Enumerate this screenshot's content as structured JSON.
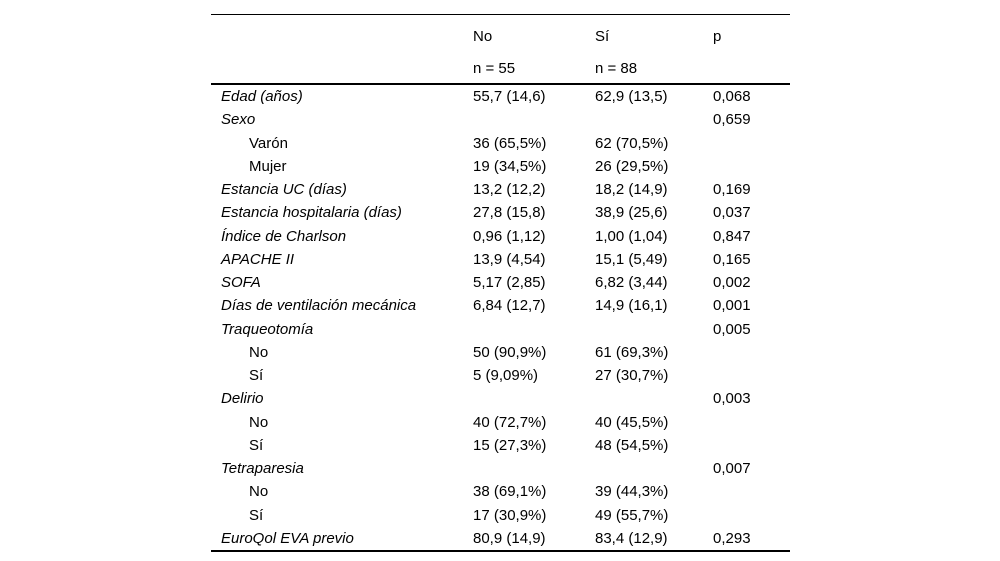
{
  "page": {
    "background_color": "#ffffff",
    "text_color": "#000000"
  },
  "table": {
    "header": {
      "group_no_label": "No",
      "group_no_n": "n = 55",
      "group_si_label": "Sí",
      "group_si_n": "n = 88",
      "p_label": "p"
    },
    "rows": [
      {
        "type": "var",
        "label": "Edad (años)",
        "no": "55,7 (14,6)",
        "si": "62,9 (13,5)",
        "p": "0,068"
      },
      {
        "type": "var",
        "label": "Sexo",
        "no": "",
        "si": "",
        "p": "0,659"
      },
      {
        "type": "sub",
        "label": "Varón",
        "no": "36 (65,5%)",
        "si": "62 (70,5%)",
        "p": ""
      },
      {
        "type": "sub",
        "label": "Mujer",
        "no": "19 (34,5%)",
        "si": "26 (29,5%)",
        "p": ""
      },
      {
        "type": "var",
        "label": "Estancia UC (días)",
        "no": "13,2 (12,2)",
        "si": "18,2 (14,9)",
        "p": "0,169"
      },
      {
        "type": "var",
        "label": "Estancia hospitalaria (días)",
        "no": "27,8 (15,8)",
        "si": "38,9 (25,6)",
        "p": "0,037"
      },
      {
        "type": "var",
        "label": "Índice de Charlson",
        "no": "0,96 (1,12)",
        "si": "1,00 (1,04)",
        "p": "0,847"
      },
      {
        "type": "var",
        "label": "APACHE II",
        "no": "13,9 (4,54)",
        "si": "15,1 (5,49)",
        "p": "0,165"
      },
      {
        "type": "var",
        "label": "SOFA",
        "no": "5,17 (2,85)",
        "si": "6,82 (3,44)",
        "p": "0,002"
      },
      {
        "type": "var",
        "label": "Días de ventilación mecánica",
        "no": "6,84 (12,7)",
        "si": "14,9 (16,1)",
        "p": "0,001"
      },
      {
        "type": "var",
        "label": "Traqueotomía",
        "no": "",
        "si": "",
        "p": "0,005"
      },
      {
        "type": "sub",
        "label": "No",
        "no": "50 (90,9%)",
        "si": "61 (69,3%)",
        "p": ""
      },
      {
        "type": "sub",
        "label": "Sí",
        "no": "5 (9,09%)",
        "si": "27 (30,7%)",
        "p": ""
      },
      {
        "type": "var",
        "label": "Delirio",
        "no": "",
        "si": "",
        "p": "0,003"
      },
      {
        "type": "sub",
        "label": "No",
        "no": "40 (72,7%)",
        "si": "40 (45,5%)",
        "p": ""
      },
      {
        "type": "sub",
        "label": "Sí",
        "no": "15 (27,3%)",
        "si": "48 (54,5%)",
        "p": ""
      },
      {
        "type": "var",
        "label": "Tetraparesia",
        "no": "",
        "si": "",
        "p": "0,007"
      },
      {
        "type": "sub",
        "label": "No",
        "no": "38 (69,1%)",
        "si": "39 (44,3%)",
        "p": ""
      },
      {
        "type": "sub",
        "label": "Sí",
        "no": "17 (30,9%)",
        "si": "49 (55,7%)",
        "p": ""
      },
      {
        "type": "var",
        "label": "EuroQol EVA previo",
        "no": "80,9 (14,9)",
        "si": "83,4 (12,9)",
        "p": "0,293"
      }
    ]
  }
}
